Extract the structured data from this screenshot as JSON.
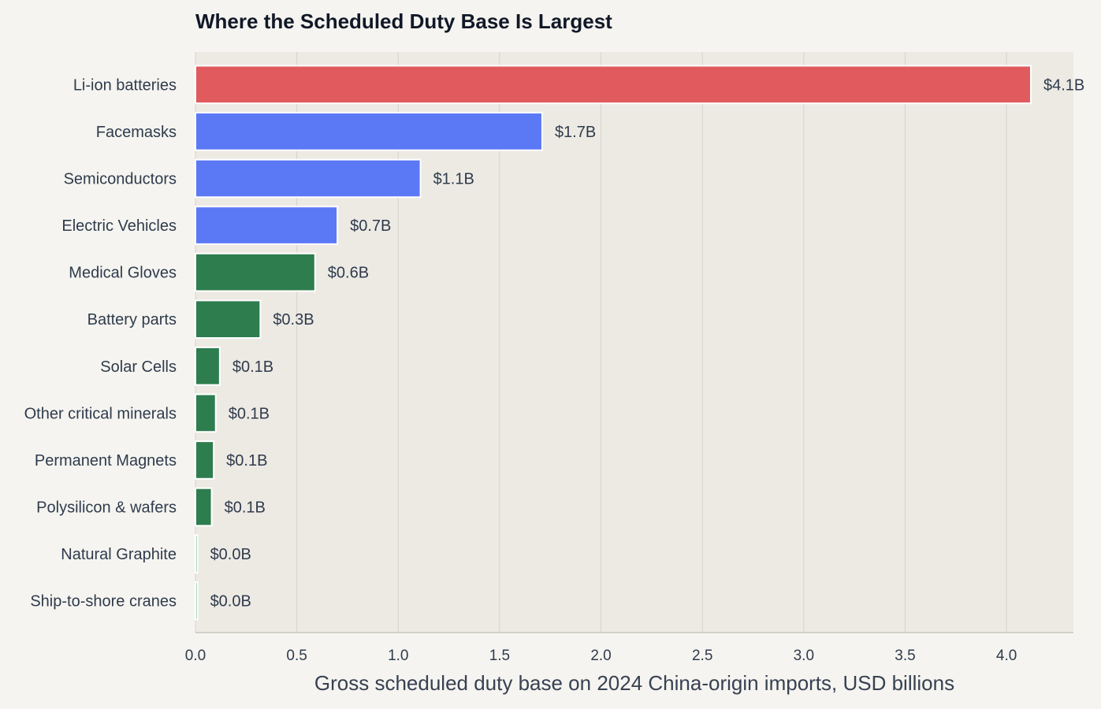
{
  "chart_data": {
    "type": "bar",
    "orientation": "horizontal",
    "title": "Where the Scheduled Duty Base Is Largest",
    "xlabel": "Gross scheduled duty base on 2024 China-origin imports, USD billions",
    "ylabel": "",
    "xlim": [
      0,
      4.33
    ],
    "xticks": [
      "0.0",
      "0.5",
      "1.0",
      "1.5",
      "2.0",
      "2.5",
      "3.0",
      "3.5",
      "4.0"
    ],
    "grid": "vertical",
    "categories": [
      "Li-ion batteries",
      "Facemasks",
      "Semiconductors",
      "Electric Vehicles",
      "Medical Gloves",
      "Battery parts",
      "Solar Cells",
      "Other critical minerals",
      "Permanent Magnets",
      "Polysilicon & wafers",
      "Natural Graphite",
      "Ship-to-shore cranes"
    ],
    "values": [
      4.12,
      1.71,
      1.11,
      0.7,
      0.59,
      0.32,
      0.12,
      0.1,
      0.09,
      0.08,
      0.01,
      0.01
    ],
    "data_labels": [
      "$4.1B",
      "$1.7B",
      "$1.1B",
      "$0.7B",
      "$0.6B",
      "$0.3B",
      "$0.1B",
      "$0.1B",
      "$0.1B",
      "$0.1B",
      "$0.0B",
      "$0.0B"
    ],
    "bar_colors": [
      "#e05a5e",
      "#5b78f5",
      "#5b78f5",
      "#5b78f5",
      "#2e7d4f",
      "#2e7d4f",
      "#2e7d4f",
      "#2e7d4f",
      "#2e7d4f",
      "#2e7d4f",
      "#6fb58f",
      "#6fb58f"
    ],
    "colors": {
      "page_background": "#f5f4f0",
      "plot_background": "#edeae4",
      "gridline": "#d6d3cd",
      "axis_line": "#c9c6c0",
      "text": "#2f3b4c"
    }
  }
}
